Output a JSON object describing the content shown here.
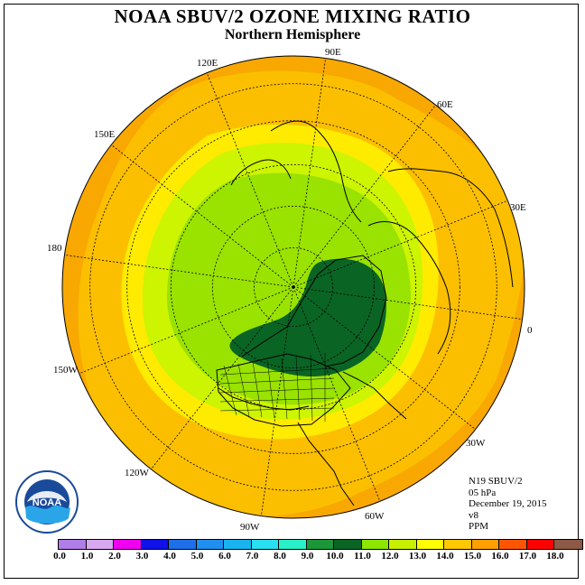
{
  "title": "NOAA SBUV/2 OZONE MIXING RATIO",
  "subtitle": "Northern Hemisphere",
  "longitude_labels": [
    {
      "id": "lon-90e",
      "text": "90E"
    },
    {
      "id": "lon-120e",
      "text": "120E"
    },
    {
      "id": "lon-60e",
      "text": "60E"
    },
    {
      "id": "lon-150e",
      "text": "150E"
    },
    {
      "id": "lon-30e",
      "text": "30E"
    },
    {
      "id": "lon-180",
      "text": "180"
    },
    {
      "id": "lon-0",
      "text": "0"
    },
    {
      "id": "lon-150w",
      "text": "150W"
    },
    {
      "id": "lon-30w",
      "text": "30W"
    },
    {
      "id": "lon-120w",
      "text": "120W"
    },
    {
      "id": "lon-60w",
      "text": "60W"
    },
    {
      "id": "lon-90w",
      "text": "90W"
    }
  ],
  "info": {
    "satellite": "N19 SBUV/2",
    "level": "05 hPa",
    "date": "December 19, 2015",
    "version": "v8",
    "units": "PPM"
  },
  "logo": {
    "text": "NOAA"
  },
  "colorbar": {
    "ticks": [
      "0.0",
      "1.0",
      "2.0",
      "3.0",
      "4.0",
      "5.0",
      "6.0",
      "7.0",
      "8.0",
      "9.0",
      "10.0",
      "11.0",
      "12.0",
      "13.0",
      "14.0",
      "15.0",
      "16.0",
      "17.0",
      "18.0"
    ],
    "colors": [
      "#b07ee8",
      "#d8a8f0",
      "#f000f0",
      "#1010e8",
      "#1f6fe8",
      "#1f8ff0",
      "#19b4f0",
      "#28e0f0",
      "#28f0c8",
      "#1c9638",
      "#0a6424",
      "#8ce600",
      "#c8f000",
      "#ffff00",
      "#ffc800",
      "#ff9f00",
      "#ff5500",
      "#ff0000",
      "#8c5a46"
    ]
  },
  "map_colors": {
    "outer": "#f8a800",
    "band14": "#fbbf00",
    "band13": "#ffeb00",
    "band12": "#cdf400",
    "band11": "#9ae200",
    "core": "#0a6424"
  }
}
